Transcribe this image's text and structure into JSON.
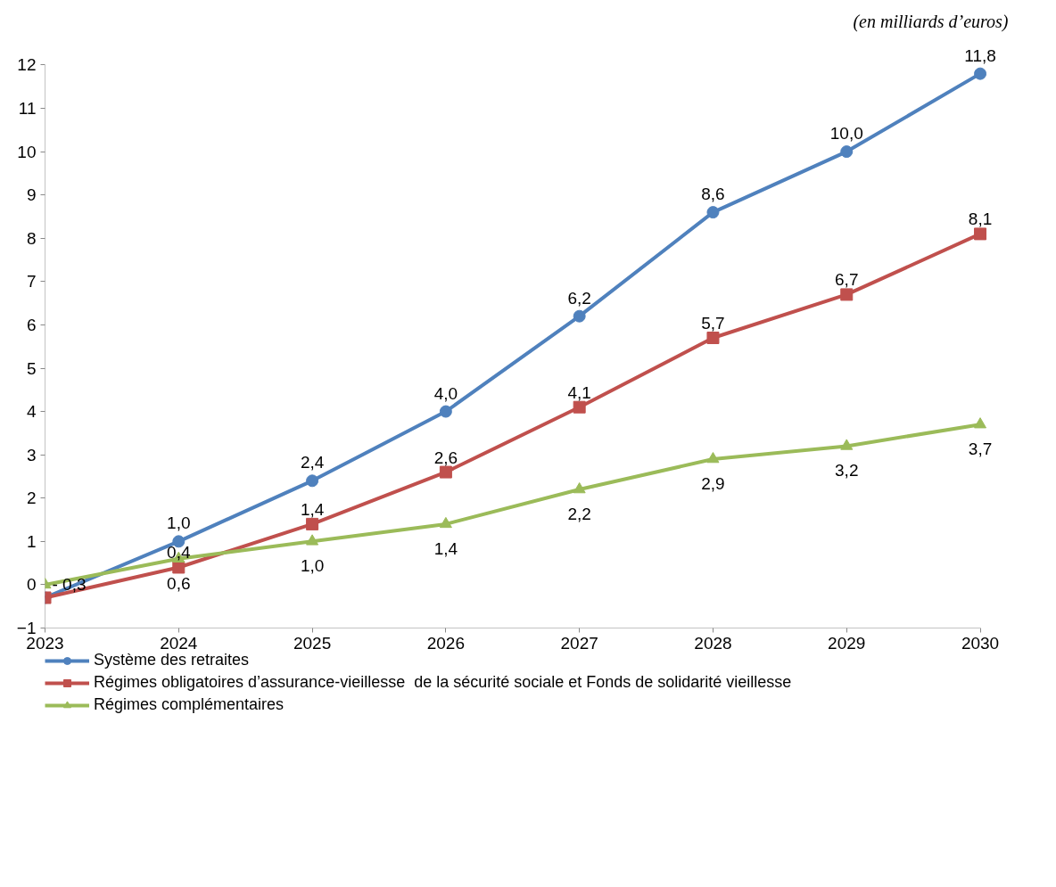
{
  "chart_data": {
    "type": "line",
    "annotations": [
      "(en milliards d’euros)"
    ],
    "x": [
      2023,
      2024,
      2025,
      2026,
      2027,
      2028,
      2029,
      2030
    ],
    "xlim": [
      2023,
      2030
    ],
    "xticks": [
      2023,
      2024,
      2025,
      2026,
      2027,
      2028,
      2029,
      2030
    ],
    "ylim": [
      -1,
      12
    ],
    "yticks": [
      -1,
      0,
      1,
      2,
      3,
      4,
      5,
      6,
      7,
      8,
      9,
      10,
      11,
      12
    ],
    "grid": false,
    "legend": "bottom",
    "line_style": "solid",
    "series": [
      {
        "name": "Système des retraites",
        "color": "#4f81bd",
        "marker": "circle",
        "values": [
          -0.3,
          1.0,
          2.4,
          4.0,
          6.2,
          8.6,
          10.0,
          11.8
        ],
        "value_labels": [
          "- 0,3",
          "1,0",
          "2,4",
          "4,0",
          "6,2",
          "8,6",
          "10,0",
          "11,8"
        ]
      },
      {
        "name": "Régimes obligatoires d’assurance-vieillesse  de la sécurité sociale et Fonds de solidarité vieillesse",
        "color": "#c0504d",
        "marker": "square",
        "values": [
          -0.3,
          0.4,
          1.4,
          2.6,
          4.1,
          5.7,
          6.7,
          8.1
        ],
        "value_labels": [
          null,
          "0,4",
          "1,4",
          "2,6",
          "4,1",
          "5,7",
          "6,7",
          "8,1"
        ]
      },
      {
        "name": "Régimes complémentaires",
        "color": "#9bbb59",
        "marker": "triangle",
        "values": [
          0.0,
          0.6,
          1.0,
          1.4,
          2.2,
          2.9,
          3.2,
          3.7
        ],
        "value_labels": [
          null,
          "0,6",
          "1,0",
          "1,4",
          "2,2",
          "2,9",
          "3,2",
          "3,7"
        ]
      }
    ]
  }
}
